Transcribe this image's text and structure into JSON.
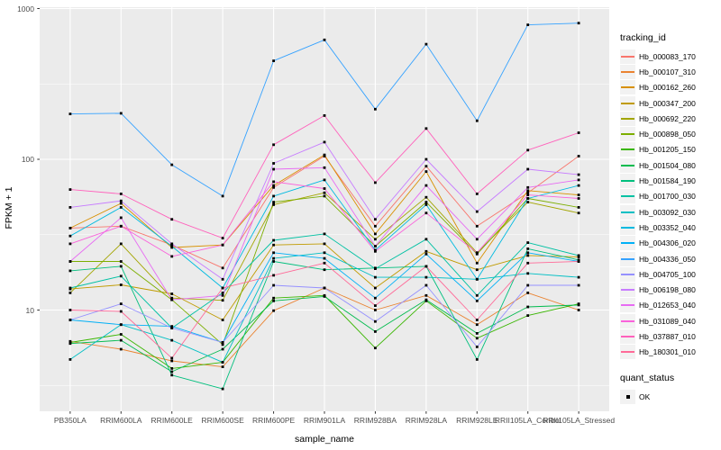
{
  "legend": {
    "tracking_title": "tracking_id",
    "quant_title": "quant_status",
    "quant_items": [
      "OK"
    ]
  },
  "chart_data": {
    "type": "line",
    "x_label": "sample_name",
    "y_label": "FPKM + 1",
    "y_scale": "log10",
    "y_ticks": [
      10,
      100,
      1000
    ],
    "y_minor_ticks": [
      3.162,
      31.62,
      316.2
    ],
    "ylim": [
      2.1,
      1020
    ],
    "legend_position": "right",
    "grid": true,
    "panel_bg": "#EBEBEB",
    "grid_color": "#FFFFFF",
    "point_color": "#000000",
    "categories": [
      "PB350LA",
      "RRIM600LA",
      "RRIM600LE",
      "RRIM600SE",
      "RRIM600PE",
      "RRIM901LA",
      "RRIM928BA",
      "RRIM928LA",
      "RRIM928LE",
      "RRII105LA_Control",
      "RRII105LA_Stressed"
    ],
    "series": [
      {
        "name": "Hb_000083_170",
        "color": "#F8766D",
        "values": [
          35,
          36,
          27,
          19,
          65,
          105,
          36,
          90,
          36,
          60,
          105
        ]
      },
      {
        "name": "Hb_000107_310",
        "color": "#EA8331",
        "values": [
          6.2,
          5.5,
          4.6,
          4.2,
          9.9,
          14,
          10,
          12.5,
          8.0,
          13,
          10
        ]
      },
      {
        "name": "Hb_000162_260",
        "color": "#D89000",
        "values": [
          35,
          51,
          26,
          27,
          67,
          107,
          32,
          83,
          20.5,
          62,
          58
        ]
      },
      {
        "name": "Hb_000347_200",
        "color": "#C09B00",
        "values": [
          13.8,
          14.7,
          12.8,
          8.6,
          27,
          27.5,
          14,
          24.5,
          18.5,
          23,
          22.5
        ]
      },
      {
        "name": "Hb_000692_220",
        "color": "#A3A500",
        "values": [
          13,
          27.5,
          12,
          11.6,
          50,
          60,
          29.5,
          56,
          24,
          52,
          44
        ]
      },
      {
        "name": "Hb_000898_050",
        "color": "#7CAE00",
        "values": [
          21,
          21,
          11.7,
          5.9,
          52,
          57,
          26.5,
          52,
          23.5,
          55,
          48
        ]
      },
      {
        "name": "Hb_001205_150",
        "color": "#39B600",
        "values": [
          6.1,
          6.9,
          4.1,
          4.5,
          12,
          12.5,
          5.6,
          11.5,
          6.5,
          9.2,
          11
        ]
      },
      {
        "name": "Hb_001504_080",
        "color": "#00BB4E",
        "values": [
          6.0,
          6.3,
          3.9,
          5.5,
          11.5,
          12.3,
          7.2,
          11.7,
          7.0,
          10.5,
          10.8
        ]
      },
      {
        "name": "Hb_001584_190",
        "color": "#00BF7D",
        "values": [
          18.2,
          19.5,
          3.7,
          3.0,
          21,
          18.5,
          19,
          19.5,
          4.7,
          25.5,
          21.5
        ]
      },
      {
        "name": "Hb_001700_030",
        "color": "#00C1A3",
        "values": [
          14,
          16.8,
          7.6,
          13,
          29,
          32,
          18.8,
          29.5,
          12.5,
          28,
          23
        ]
      },
      {
        "name": "Hb_003092_030",
        "color": "#00BFC4",
        "values": [
          4.7,
          8.0,
          6.3,
          4.5,
          22,
          24,
          16.5,
          16.5,
          16,
          17.5,
          16.5
        ]
      },
      {
        "name": "Hb_003352_040",
        "color": "#00BAE0",
        "values": [
          31,
          48,
          26.5,
          14,
          57,
          73,
          25,
          50,
          16,
          55,
          67
        ]
      },
      {
        "name": "Hb_004306_020",
        "color": "#00B0F6",
        "values": [
          8.6,
          8.0,
          7.8,
          6.1,
          24,
          22,
          12,
          23.5,
          11.5,
          24,
          21
        ]
      },
      {
        "name": "Hb_004336_050",
        "color": "#35A2FF",
        "values": [
          200,
          202,
          92,
          57,
          450,
          620,
          215,
          580,
          180,
          780,
          800
        ]
      },
      {
        "name": "Hb_004705_100",
        "color": "#9590FF",
        "values": [
          8.6,
          11,
          7.6,
          6.1,
          14.6,
          14,
          8.4,
          14.6,
          5.7,
          14.6,
          14.6
        ]
      },
      {
        "name": "Hb_006198_080",
        "color": "#C77CFF",
        "values": [
          48,
          53,
          27.5,
          16,
          94,
          130,
          40,
          100,
          45,
          86,
          79
        ]
      },
      {
        "name": "Hb_012653_040",
        "color": "#E76BF3",
        "values": [
          21,
          41,
          11.7,
          12.5,
          86,
          88,
          26.5,
          67,
          29.5,
          65,
          73
        ]
      },
      {
        "name": "Hb_031089_040",
        "color": "#FA62DB",
        "values": [
          27.5,
          36,
          22.7,
          27,
          71,
          64,
          24.5,
          44,
          24,
          58,
          55
        ]
      },
      {
        "name": "Hb_037887_010",
        "color": "#FF62BC",
        "values": [
          63,
          59,
          40,
          30,
          125,
          195,
          70,
          160,
          59,
          115,
          150
        ]
      },
      {
        "name": "Hb_180301_010",
        "color": "#FF6A98",
        "values": [
          10,
          9.8,
          4.8,
          14,
          17,
          20.5,
          10.7,
          19.5,
          8.6,
          20.5,
          21
        ]
      }
    ]
  }
}
